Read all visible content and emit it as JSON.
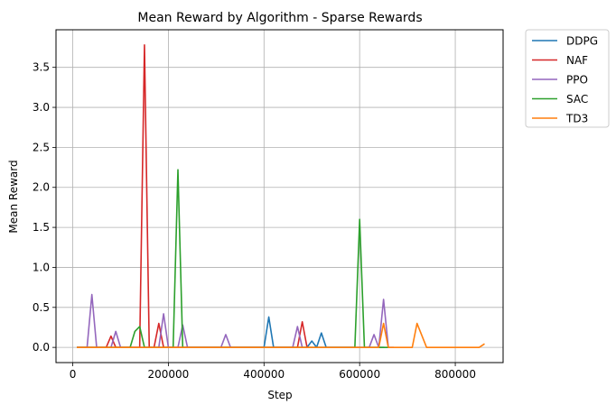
{
  "chart_data": {
    "type": "line",
    "title": "Mean Reward by Algorithm - Sparse Rewards",
    "xlabel": "Step",
    "ylabel": "Mean Reward",
    "xlim": [
      -35000,
      900000
    ],
    "ylim": [
      -0.19,
      3.97
    ],
    "xticks": [
      0,
      200000,
      400000,
      600000,
      800000
    ],
    "yticks": [
      0.0,
      0.5,
      1.0,
      1.5,
      2.0,
      2.5,
      3.0,
      3.5
    ],
    "xtick_labels": [
      "0",
      "200000",
      "400000",
      "600000",
      "800000"
    ],
    "ytick_labels": [
      "0.0",
      "0.5",
      "1.0",
      "1.5",
      "2.0",
      "2.5",
      "3.0",
      "3.5"
    ],
    "grid": true,
    "legend_position": "outside top-right",
    "series": [
      {
        "name": "DDPG",
        "color": "#1f77b4",
        "points": [
          [
            10000,
            0
          ],
          [
            400000,
            0
          ],
          [
            410000,
            0.38
          ],
          [
            420000,
            0
          ],
          [
            490000,
            0
          ],
          [
            500000,
            0.08
          ],
          [
            510000,
            0
          ],
          [
            520000,
            0.18
          ],
          [
            530000,
            0
          ],
          [
            650000,
            0
          ]
        ]
      },
      {
        "name": "NAF",
        "color": "#d62728",
        "points": [
          [
            10000,
            0
          ],
          [
            70000,
            0
          ],
          [
            80000,
            0.14
          ],
          [
            90000,
            0
          ],
          [
            140000,
            0
          ],
          [
            150000,
            3.78
          ],
          [
            160000,
            0
          ],
          [
            170000,
            0
          ],
          [
            180000,
            0.3
          ],
          [
            190000,
            0
          ],
          [
            470000,
            0
          ],
          [
            480000,
            0.32
          ],
          [
            490000,
            0
          ]
        ]
      },
      {
        "name": "PPO",
        "color": "#9467bd",
        "points": [
          [
            10000,
            0
          ],
          [
            30000,
            0
          ],
          [
            40000,
            0.66
          ],
          [
            50000,
            0
          ],
          [
            80000,
            0
          ],
          [
            90000,
            0.2
          ],
          [
            100000,
            0
          ],
          [
            180000,
            0
          ],
          [
            190000,
            0.42
          ],
          [
            200000,
            0
          ],
          [
            220000,
            0
          ],
          [
            230000,
            0.28
          ],
          [
            240000,
            0
          ],
          [
            310000,
            0
          ],
          [
            320000,
            0.16
          ],
          [
            330000,
            0
          ],
          [
            460000,
            0
          ],
          [
            470000,
            0.26
          ],
          [
            480000,
            0
          ],
          [
            620000,
            0
          ],
          [
            630000,
            0.16
          ],
          [
            640000,
            0
          ],
          [
            650000,
            0.6
          ],
          [
            660000,
            0
          ],
          [
            670000,
            0
          ]
        ]
      },
      {
        "name": "SAC",
        "color": "#2ca02c",
        "points": [
          [
            10000,
            0
          ],
          [
            120000,
            0
          ],
          [
            130000,
            0.2
          ],
          [
            140000,
            0.26
          ],
          [
            150000,
            0
          ],
          [
            210000,
            0
          ],
          [
            220000,
            2.22
          ],
          [
            230000,
            0
          ],
          [
            590000,
            0
          ],
          [
            600000,
            1.6
          ],
          [
            610000,
            0
          ],
          [
            660000,
            0
          ]
        ]
      },
      {
        "name": "TD3",
        "color": "#ff7f0e",
        "points": [
          [
            10000,
            0
          ],
          [
            640000,
            0
          ],
          [
            650000,
            0.3
          ],
          [
            660000,
            0
          ],
          [
            710000,
            0
          ],
          [
            720000,
            0.3
          ],
          [
            740000,
            0
          ],
          [
            850000,
            0
          ],
          [
            860000,
            0.04
          ]
        ]
      }
    ]
  }
}
